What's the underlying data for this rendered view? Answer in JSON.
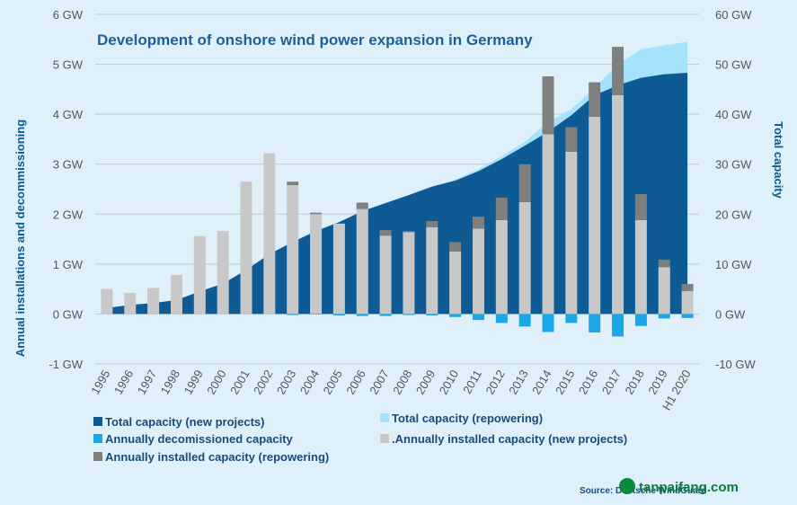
{
  "watermark": {
    "text": "tanpaifang.com"
  },
  "chart_data": {
    "type": "bar",
    "title": "Development of onshore wind power expansion in Germany",
    "source": "Source: Deutsche WindGuard",
    "ylabel": "Annual installations and decommissioning",
    "y2label": "Total capacity",
    "ylim": [
      -1,
      6
    ],
    "y2lim": [
      -10,
      60
    ],
    "yticks": [
      "-1 GW",
      "0 GW",
      "1 GW",
      "2 GW",
      "3 GW",
      "4 GW",
      "5 GW",
      "6 GW"
    ],
    "y2ticks": [
      "-10 GW",
      "0 GW",
      "10 GW",
      "20 GW",
      "30 GW",
      "40 GW",
      "50 GW",
      "60 GW"
    ],
    "categories": [
      "1995",
      "1996",
      "1997",
      "1998",
      "1999",
      "2000",
      "2001",
      "2002",
      "2003",
      "2004",
      "2005",
      "2006",
      "2007",
      "2008",
      "2009",
      "2010",
      "2011",
      "2012",
      "2013",
      "2014",
      "2015",
      "2016",
      "2017",
      "2018",
      "2019",
      "H1 2020"
    ],
    "series": [
      {
        "name": "Total capacity (new projects)",
        "axis": "right",
        "style": "area",
        "color": "#0d5a94",
        "values": [
          1.2,
          1.8,
          2.2,
          2.8,
          4.5,
          6.1,
          8.8,
          12.0,
          14.4,
          16.6,
          18.4,
          20.6,
          22.2,
          23.8,
          25.5,
          26.7,
          28.6,
          31.0,
          33.7,
          36.5,
          39.8,
          43.8,
          45.8,
          47.3,
          48.0,
          48.3
        ]
      },
      {
        "name": "Total capacity (repowering)",
        "axis": "right",
        "style": "area",
        "color": "#a5e2fb",
        "values": [
          1.2,
          1.8,
          2.2,
          2.8,
          4.5,
          6.1,
          8.8,
          12.0,
          14.4,
          16.6,
          18.4,
          20.6,
          22.2,
          23.8,
          25.6,
          26.9,
          29.0,
          31.6,
          34.5,
          38.5,
          41.0,
          45.3,
          50.0,
          53.0,
          53.8,
          54.5
        ]
      },
      {
        "name": "Annually decomissioned capacity",
        "axis": "left",
        "style": "bar",
        "color": "#1aa7e6",
        "values": [
          0,
          0,
          0,
          0,
          0,
          0,
          0,
          0,
          -0.02,
          -0.01,
          -0.03,
          -0.04,
          -0.04,
          -0.02,
          -0.03,
          -0.06,
          -0.12,
          -0.18,
          -0.25,
          -0.36,
          -0.18,
          -0.37,
          -0.45,
          -0.24,
          -0.09,
          -0.08
        ]
      },
      {
        "name": ".Annually installed capacity (new projects)",
        "axis": "left",
        "style": "bar",
        "color": "#c8c8c8",
        "values": [
          0.5,
          0.42,
          0.52,
          0.78,
          1.56,
          1.66,
          2.65,
          3.22,
          2.58,
          2.0,
          1.81,
          2.1,
          1.57,
          1.64,
          1.74,
          1.25,
          1.71,
          1.88,
          2.24,
          3.6,
          3.25,
          3.95,
          4.38,
          1.88,
          0.94,
          0.46
        ]
      },
      {
        "name": "Annually installed capacity (repowering)",
        "axis": "left",
        "style": "bar",
        "color": "#7f7f7f",
        "values": [
          0,
          0,
          0,
          0,
          0,
          0,
          0,
          0,
          0.07,
          0.03,
          0,
          0.13,
          0.11,
          0.02,
          0.12,
          0.19,
          0.24,
          0.45,
          0.76,
          1.16,
          0.49,
          0.69,
          0.97,
          0.52,
          0.15,
          0.14
        ]
      }
    ],
    "legend_position": "bottom"
  }
}
